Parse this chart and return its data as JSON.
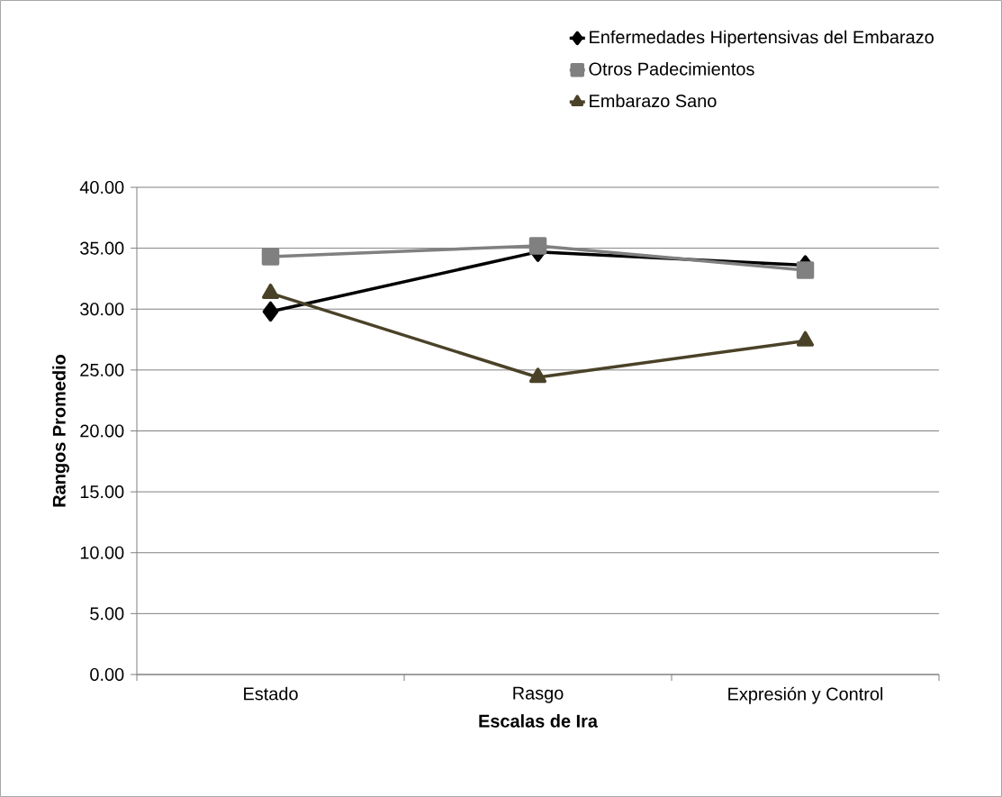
{
  "chart_data": {
    "type": "line",
    "xlabel": "Escalas de Ira",
    "ylabel": "Rangos  Promedio",
    "categories": [
      "Estado",
      "Rasgo",
      "Expresión y Control"
    ],
    "series": [
      {
        "name": "Enfermedades Hipertensivas del Embarazo",
        "color": "#000000",
        "marker": "diamond",
        "values": [
          29.8,
          34.7,
          33.6
        ]
      },
      {
        "name": "Otros Padecimientos",
        "color": "#808080",
        "marker": "square",
        "values": [
          34.3,
          35.2,
          33.2
        ]
      },
      {
        "name": "Embarazo Sano",
        "color": "#4a4228",
        "marker": "triangle",
        "values": [
          31.3,
          24.4,
          27.4
        ]
      }
    ],
    "ylim": [
      0,
      40
    ],
    "yticks": [
      {
        "value": 0,
        "label": "0.00"
      },
      {
        "value": 5,
        "label": "5.00"
      },
      {
        "value": 10,
        "label": "10.00"
      },
      {
        "value": 15,
        "label": "15.00"
      },
      {
        "value": 20,
        "label": "20.00"
      },
      {
        "value": 25,
        "label": "25.00"
      },
      {
        "value": 30,
        "label": "30.00"
      },
      {
        "value": 35,
        "label": "35.00"
      },
      {
        "value": 40,
        "label": "40.00"
      }
    ],
    "grid": "y",
    "legend": "top right",
    "line_style": "solid"
  }
}
